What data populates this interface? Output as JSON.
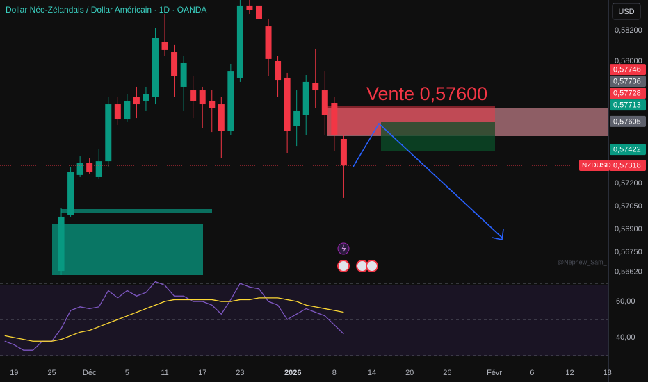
{
  "chart_data": [
    {
      "type": "candlestick",
      "title": "Dollar Néo-Zélandais / Dollar Américain · 1D · OANDA",
      "currency": "USD",
      "symbol": "NZDUSD",
      "annotation": "Vente 0,57600",
      "watermark": "@Nephew_Sam_",
      "up_color": "#089981",
      "down_color": "#f23645",
      "x": [
        0,
        1,
        2,
        3,
        4,
        5,
        6,
        7,
        8,
        9,
        10,
        11,
        12,
        13,
        14,
        15,
        16,
        17,
        18,
        19,
        20,
        21,
        22,
        23,
        24,
        25,
        26,
        27,
        28,
        29,
        30
      ],
      "open": [
        0.56627,
        0.56991,
        0.57255,
        0.57332,
        0.57241,
        0.57345,
        0.57718,
        0.57618,
        0.57764,
        0.57741,
        0.57764,
        0.58127,
        0.58059,
        0.57832,
        0.57809,
        0.57809,
        0.57741,
        0.57718,
        0.57545,
        0.57891,
        0.58364,
        0.58364,
        0.58227,
        0.58,
        0.57891,
        0.57573,
        0.5765,
        0.57855,
        0.57809,
        0.57727,
        0.57491
      ],
      "high": [
        0.57036,
        0.57309,
        0.57377,
        0.57364,
        0.57423,
        0.57764,
        0.57764,
        0.57786,
        0.57832,
        0.57832,
        0.58218,
        0.58309,
        0.58105,
        0.58036,
        0.579,
        0.57832,
        0.57809,
        0.57764,
        0.57982,
        0.584,
        0.584,
        0.584,
        0.58273,
        0.58036,
        0.57923,
        0.57809,
        0.57909,
        0.58082,
        0.57936,
        0.57764,
        0.57514
      ],
      "low": [
        0.566,
        0.56982,
        0.57241,
        0.57264,
        0.57227,
        0.57309,
        0.57582,
        0.57605,
        0.57627,
        0.57673,
        0.57718,
        0.58036,
        0.57764,
        0.57673,
        0.57627,
        0.57559,
        0.57536,
        0.57364,
        0.57514,
        0.57864,
        0.58309,
        0.58218,
        0.579,
        0.57764,
        0.574,
        0.57445,
        0.57514,
        0.57695,
        0.57514,
        0.57409,
        0.57105
      ],
      "close": [
        0.56982,
        0.57273,
        0.57332,
        0.57273,
        0.57345,
        0.57718,
        0.57618,
        0.57741,
        0.57718,
        0.57786,
        0.5815,
        0.58073,
        0.579,
        0.57991,
        0.57741,
        0.57718,
        0.57695,
        0.57545,
        0.57936,
        0.58364,
        0.58332,
        0.58273,
        0.58014,
        0.57877,
        0.57545,
        0.57673,
        0.57864,
        0.57809,
        0.5765,
        0.57514,
        0.57318
      ],
      "xlim": [
        -6.5,
        58.1
      ],
      "ylim": [
        0.566,
        0.584
      ],
      "yticks": [
        {
          "value": 0.582,
          "label": "0,58200"
        },
        {
          "value": 0.58,
          "label": "0,58000"
        },
        {
          "value": 0.572,
          "label": "0,57200"
        },
        {
          "value": 0.5705,
          "label": "0,57050"
        },
        {
          "value": 0.569,
          "label": "0,56900"
        },
        {
          "value": 0.5675,
          "label": "0,56750"
        },
        {
          "value": 0.5662,
          "label": "0,56620"
        }
      ],
      "price_labels": [
        {
          "value": 0.57746,
          "label": "0,57746",
          "color": "#f23645"
        },
        {
          "value": 0.57736,
          "label": "0,57736",
          "color": "#5d606b"
        },
        {
          "value": 0.57728,
          "label": "0,57728",
          "color": "#f23645"
        },
        {
          "value": 0.57713,
          "label": "0,57713",
          "color": "#089981"
        },
        {
          "value": 0.57605,
          "label": "0,57605",
          "color": "#5d606b"
        },
        {
          "value": 0.57422,
          "label": "0,57422",
          "color": "#089981"
        },
        {
          "value": 0.57318,
          "label": "0,57318",
          "color": "#f23645"
        }
      ]
    },
    {
      "type": "line",
      "x": [
        -6,
        -5,
        -4,
        -3,
        -2,
        -1,
        0,
        1,
        2,
        3,
        4,
        5,
        6,
        7,
        8,
        9,
        10,
        11,
        12,
        13,
        14,
        15,
        16,
        17,
        18,
        19,
        20,
        21,
        22,
        23,
        24,
        25,
        26,
        27,
        28,
        29,
        30
      ],
      "series": [
        {
          "name": "RSI",
          "color": "#7e57c2",
          "values": [
            38,
            36,
            33,
            33,
            38,
            38,
            45,
            55,
            57,
            56,
            57,
            66,
            62,
            66,
            63,
            65,
            71,
            69,
            63,
            63,
            60,
            60,
            58,
            53,
            61,
            70,
            68,
            67,
            60,
            58,
            50,
            53,
            56,
            54,
            52,
            47,
            42
          ]
        },
        {
          "name": "RSI MA",
          "color": "#fdd835",
          "values": [
            41,
            40,
            39,
            38,
            38,
            38,
            39,
            41,
            43,
            44,
            46,
            48,
            50,
            52,
            54,
            56,
            58,
            60,
            61,
            61,
            61,
            61,
            61,
            60,
            60,
            61,
            61,
            62,
            62,
            62,
            61,
            60,
            58,
            57,
            56,
            55,
            54
          ]
        }
      ],
      "bands": [
        70,
        50,
        30
      ],
      "xlim": [
        -6.5,
        58.1
      ],
      "ylim": [
        25,
        73.1
      ],
      "yticks": [
        {
          "value": 60,
          "label": "60,00"
        },
        {
          "value": 40,
          "label": "40,00"
        }
      ],
      "xticks": [
        {
          "value": -5,
          "label": "19"
        },
        {
          "value": -1,
          "label": "25"
        },
        {
          "value": 3,
          "label": "Déc"
        },
        {
          "value": 7,
          "label": "5"
        },
        {
          "value": 11,
          "label": "11"
        },
        {
          "value": 15,
          "label": "17"
        },
        {
          "value": 19,
          "label": "23"
        },
        {
          "value": 24.6,
          "label": "2026"
        },
        {
          "value": 29,
          "label": "8"
        },
        {
          "value": 33,
          "label": "14"
        },
        {
          "value": 37,
          "label": "20"
        },
        {
          "value": 41,
          "label": "26"
        },
        {
          "value": 46,
          "label": "Févr"
        },
        {
          "value": 50,
          "label": "6"
        },
        {
          "value": 54,
          "label": "12"
        },
        {
          "value": 58,
          "label": "18"
        }
      ]
    }
  ]
}
